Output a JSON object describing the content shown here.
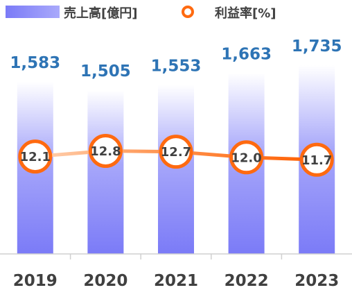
{
  "chart_data": {
    "type": "bar",
    "categories": [
      "2019",
      "2020",
      "2021",
      "2022",
      "2023"
    ],
    "series": [
      {
        "name": "売上高[億円]",
        "type": "bar",
        "axis": "left",
        "values": [
          1583,
          1505,
          1553,
          1663,
          1735
        ],
        "labels": [
          "1,583",
          "1,505",
          "1,553",
          "1,663",
          "1,735"
        ]
      },
      {
        "name": "利益率[%]",
        "type": "line",
        "axis": "right",
        "values": [
          12.1,
          12.8,
          12.7,
          12.0,
          11.7
        ],
        "labels": [
          "12.1",
          "12.8",
          "12.7",
          "12.0",
          "11.7"
        ]
      }
    ],
    "title": "",
    "xlabel": "",
    "ylabel": "",
    "ylim": [
      0,
      1850
    ],
    "y2lim": [
      0,
      25
    ],
    "legend": "top-left",
    "grid": false,
    "colors": {
      "bar_top": "#ffffff",
      "bar_bottom": "#7b7bf7",
      "line": "#ff6a10",
      "bar_value_text": "#2e74b5",
      "axis_text": "#404040"
    }
  }
}
